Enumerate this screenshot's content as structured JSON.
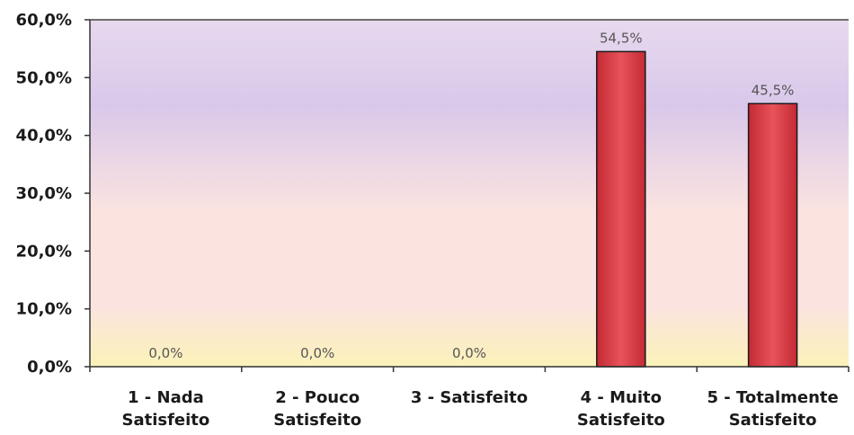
{
  "chart_data": {
    "type": "bar",
    "categories": [
      [
        "1 - Nada",
        "Satisfeito"
      ],
      [
        "2 - Pouco",
        "Satisfeito"
      ],
      [
        "3 - Satisfeito"
      ],
      [
        "4 - Muito",
        "Satisfeito"
      ],
      [
        "5 - Totalmente",
        "Satisfeito"
      ]
    ],
    "values": [
      0.0,
      0.0,
      0.0,
      54.5,
      45.5
    ],
    "data_labels": [
      "0,0%",
      "0,0%",
      "0,0%",
      "54,5%",
      "45,5%"
    ],
    "y_ticks": [
      "0,0%",
      "10,0%",
      "20,0%",
      "30,0%",
      "40,0%",
      "50,0%",
      "60,0%"
    ],
    "ylim": [
      0,
      60
    ],
    "title": "",
    "xlabel": "",
    "ylabel": "",
    "grid": false,
    "legend": "none",
    "colors": {
      "bar_top": "#e8535a",
      "bar_bottom": "#c42a34",
      "bar_border": "#1a1a1a",
      "bg_top": "#e7d9ef",
      "bg_mid": "#d9c8ea",
      "bg_low": "#fbe3e0",
      "bg_bottom": "#fbf2b9"
    }
  }
}
